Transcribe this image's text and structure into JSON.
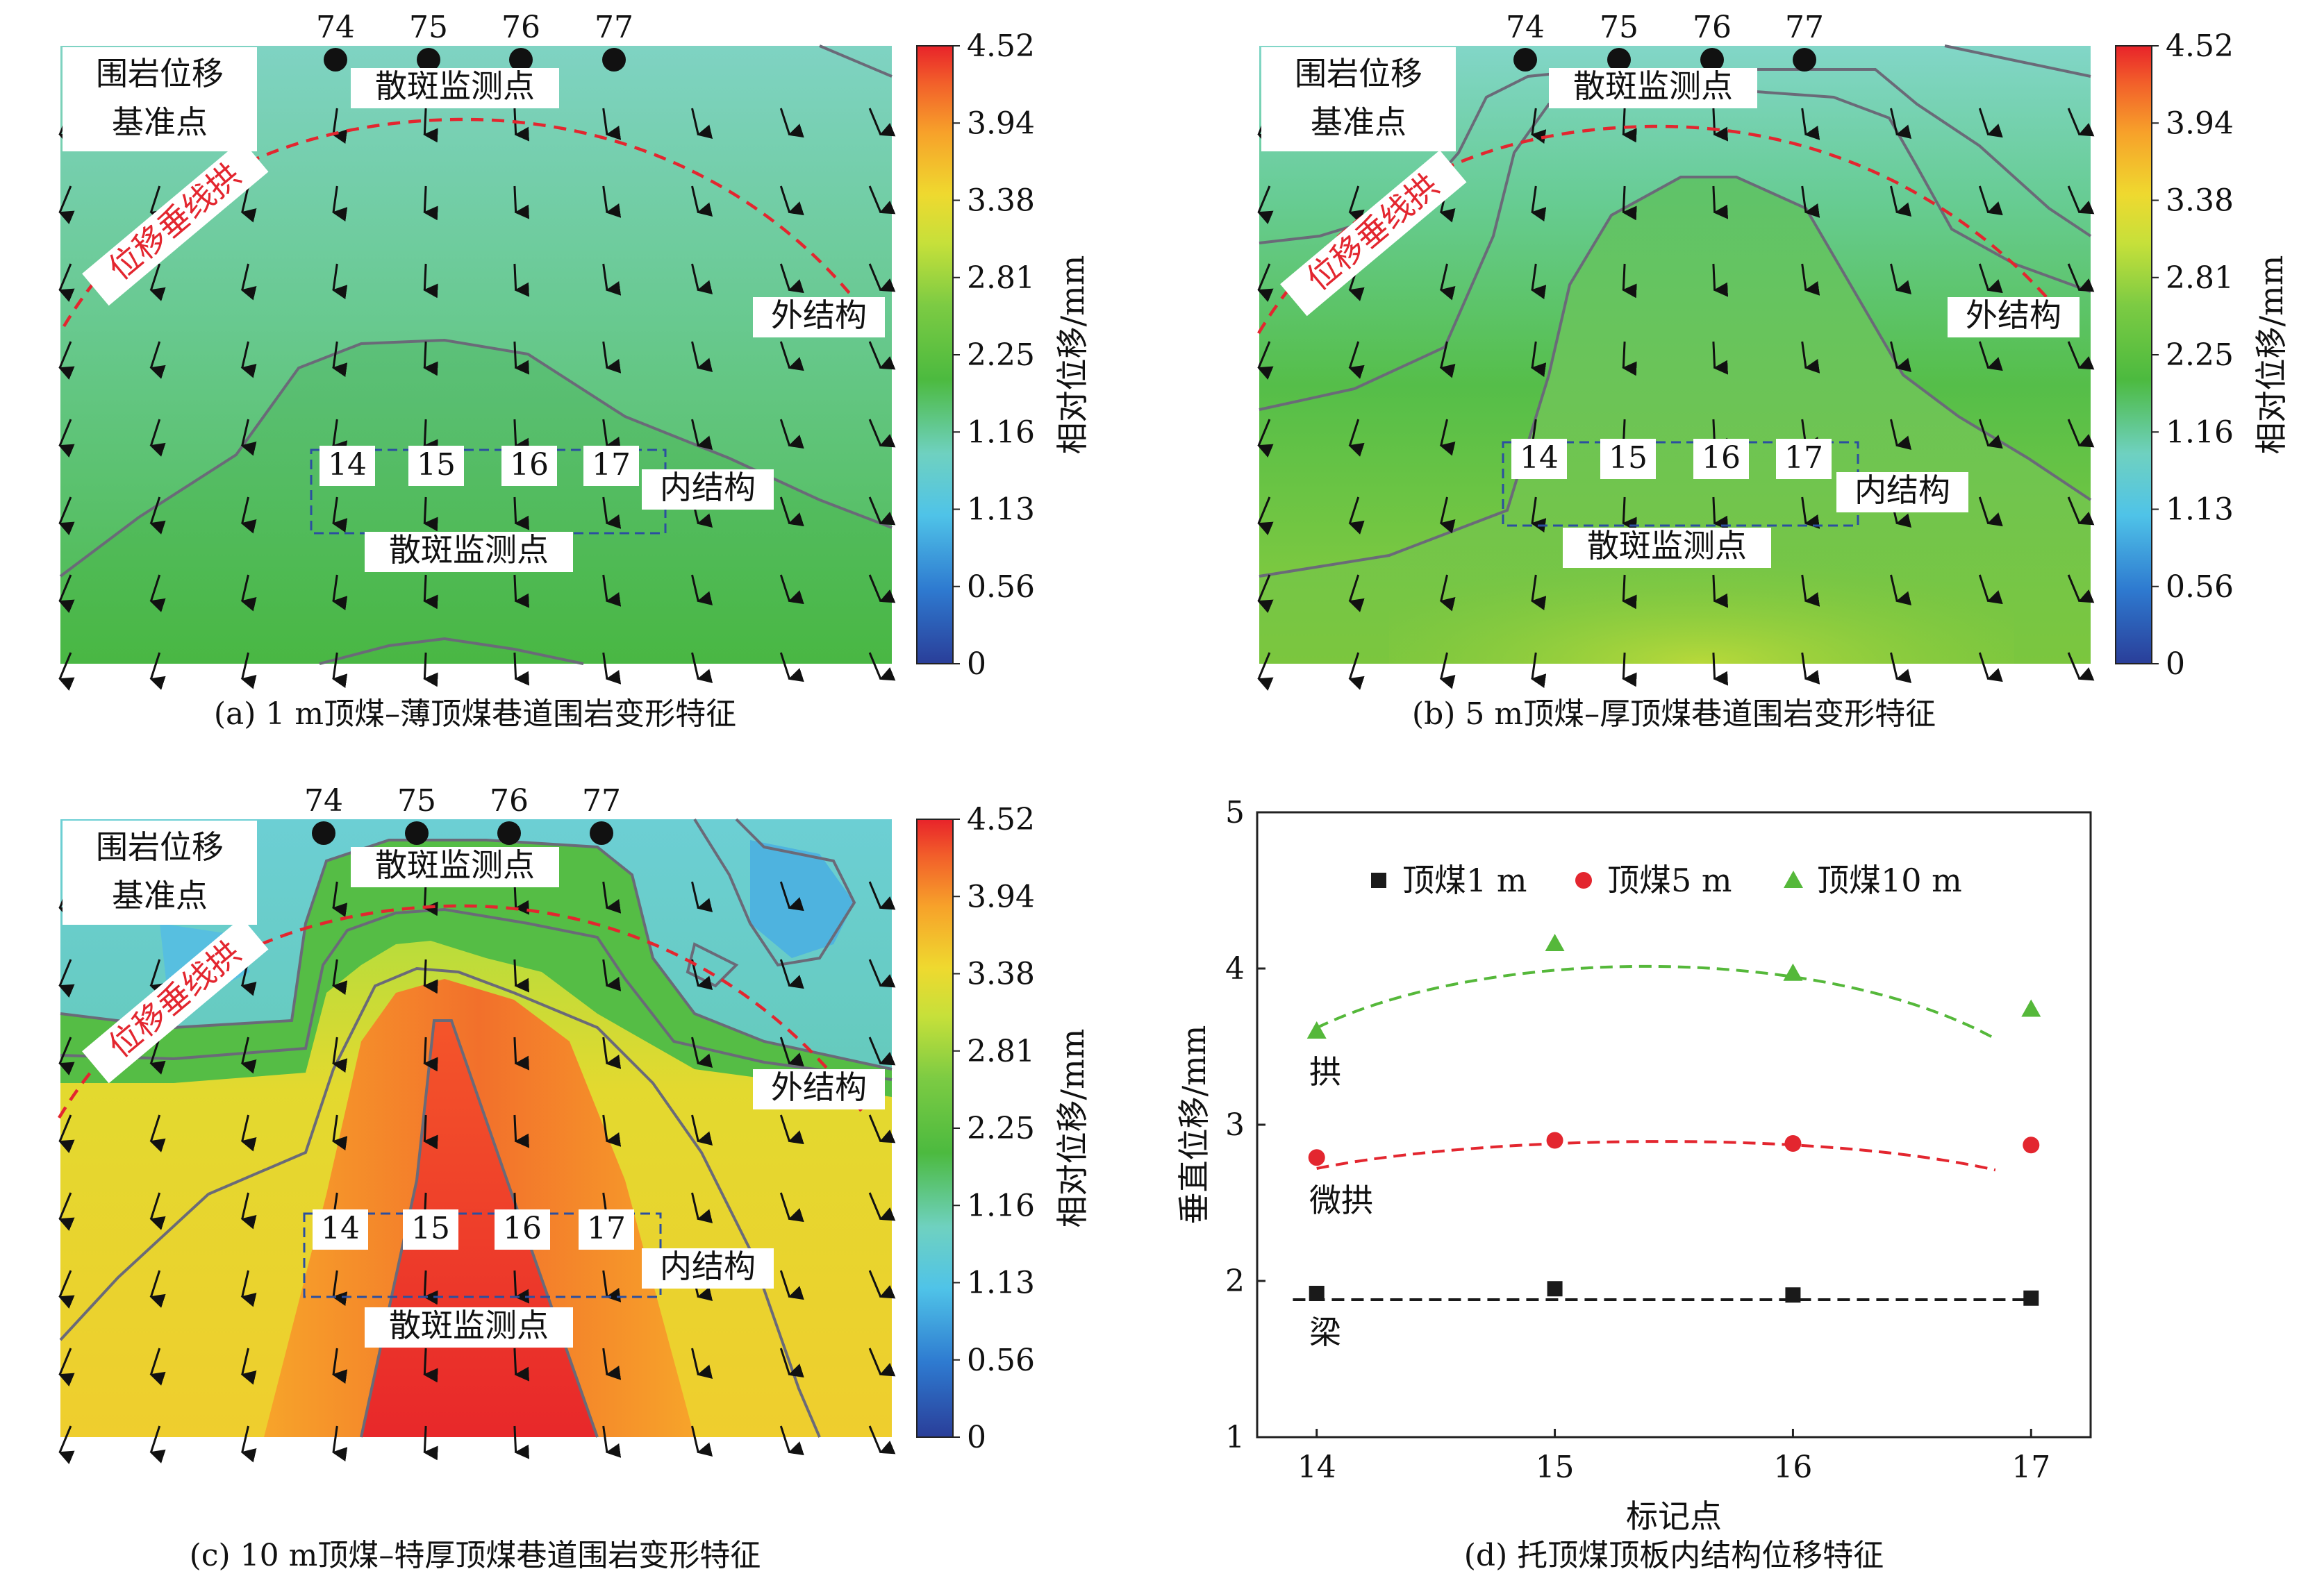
{
  "panels": [
    {
      "id": "a",
      "caption": "(a) 1 m顶煤–薄顶煤巷道围岩变形特征",
      "markers_top": [
        "74",
        "75",
        "76",
        "77"
      ],
      "markers_inner": [
        "14",
        "15",
        "16",
        "17"
      ],
      "label_reference": [
        "围岩位移",
        "基准点"
      ],
      "label_speckle_top": "散斑监测点",
      "label_speckle_bottom": "散斑监测点",
      "label_arch": "位移垂线拱",
      "label_outer": "外结构",
      "label_inner": "内结构"
    },
    {
      "id": "b",
      "caption": "(b) 5 m顶煤–厚顶煤巷道围岩变形特征",
      "markers_top": [
        "74",
        "75",
        "76",
        "77"
      ],
      "markers_inner": [
        "14",
        "15",
        "16",
        "17"
      ],
      "label_reference": [
        "围岩位移",
        "基准点"
      ],
      "label_speckle_top": "散斑监测点",
      "label_speckle_bottom": "散斑监测点",
      "label_arch": "位移垂线拱",
      "label_outer": "外结构",
      "label_inner": "内结构"
    },
    {
      "id": "c",
      "caption": "(c) 10 m顶煤–特厚顶煤巷道围岩变形特征",
      "markers_top": [
        "74",
        "75",
        "76",
        "77"
      ],
      "markers_inner": [
        "14",
        "15",
        "16",
        "17"
      ],
      "label_reference": [
        "围岩位移",
        "基准点"
      ],
      "label_speckle_top": "散斑监测点",
      "label_speckle_bottom": "散斑监测点",
      "label_arch": "位移垂线拱",
      "label_outer": "外结构",
      "label_inner": "内结构"
    }
  ],
  "colorbar": {
    "label": "相对位移/mm",
    "ticks": [
      "4.52",
      "3.94",
      "3.38",
      "2.81",
      "2.25",
      "1.16",
      "1.13",
      "0.56",
      "0"
    ],
    "stops": [
      "#e8232a",
      "#f25f2a",
      "#f7a12a",
      "#efd92f",
      "#c6e03a",
      "#7ccb43",
      "#4cba3f",
      "#6fd1c0",
      "#4fc3e8",
      "#2e7ad0",
      "#2a3e99"
    ]
  },
  "chart_data": {
    "type": "scatter",
    "caption": "(d) 托顶煤顶板内结构位移特征",
    "xlabel": "标记点",
    "ylabel": "垂直位移/mm",
    "x": [
      14,
      15,
      16,
      17
    ],
    "xlim": [
      13.75,
      17.25
    ],
    "ylim": [
      1,
      5
    ],
    "xticks": [
      "14",
      "15",
      "16",
      "17"
    ],
    "yticks": [
      "1",
      "2",
      "3",
      "4",
      "5"
    ],
    "series": [
      {
        "name": "顶煤1 m",
        "marker": "square",
        "color": "#1a1a1a",
        "values": [
          1.92,
          1.95,
          1.91,
          1.89
        ],
        "trend": [
          1.88,
          1.88,
          1.88,
          1.88
        ],
        "annotation": "梁"
      },
      {
        "name": "顶煤5 m",
        "marker": "circle",
        "color": "#e3262f",
        "values": [
          2.79,
          2.9,
          2.88,
          2.87
        ],
        "trend": [
          2.72,
          2.88,
          2.89,
          2.71
        ],
        "annotation": "微拱"
      },
      {
        "name": "顶煤10 m",
        "marker": "triangle",
        "color": "#55b83a",
        "values": [
          3.6,
          4.16,
          3.97,
          3.74
        ],
        "trend": [
          3.62,
          4.05,
          4.05,
          3.55
        ],
        "annotation": "拱"
      }
    ],
    "legend_position": "top"
  }
}
